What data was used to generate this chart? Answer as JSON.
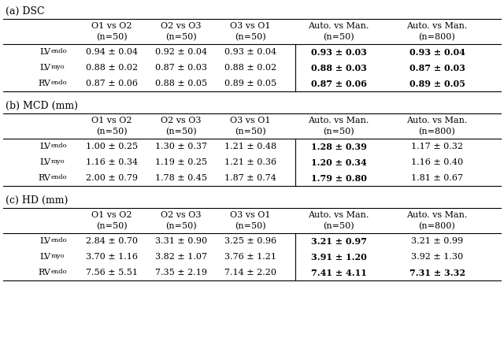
{
  "sections": [
    {
      "label": "(a) DSC",
      "header_row1": [
        "O1 vs O2",
        "O2 vs O3",
        "O3 vs O1",
        "Auto. vs Man.",
        "Auto. vs Man."
      ],
      "header_row2": [
        "(n=50)",
        "(n=50)",
        "(n=50)",
        "(n=50)",
        "(n=800)"
      ],
      "rows": [
        {
          "main": "LV",
          "sub": "endo",
          "cols": [
            {
              "text": "0.94 ± 0.04",
              "bold": false
            },
            {
              "text": "0.92 ± 0.04",
              "bold": false
            },
            {
              "text": "0.93 ± 0.04",
              "bold": false
            },
            {
              "text": "0.93 ± 0.03",
              "bold": true
            },
            {
              "text": "0.93 ± 0.04",
              "bold": true
            }
          ]
        },
        {
          "main": "LV",
          "sub": "myo",
          "cols": [
            {
              "text": "0.88 ± 0.02",
              "bold": false
            },
            {
              "text": "0.87 ± 0.03",
              "bold": false
            },
            {
              "text": "0.88 ± 0.02",
              "bold": false
            },
            {
              "text": "0.88 ± 0.03",
              "bold": true
            },
            {
              "text": "0.87 ± 0.03",
              "bold": true
            }
          ]
        },
        {
          "main": "RV",
          "sub": "endo",
          "cols": [
            {
              "text": "0.87 ± 0.06",
              "bold": false
            },
            {
              "text": "0.88 ± 0.05",
              "bold": false
            },
            {
              "text": "0.89 ± 0.05",
              "bold": false
            },
            {
              "text": "0.87 ± 0.06",
              "bold": true
            },
            {
              "text": "0.89 ± 0.05",
              "bold": true
            }
          ]
        }
      ]
    },
    {
      "label": "(b) MCD (mm)",
      "header_row1": [
        "O1 vs O2",
        "O2 vs O3",
        "O3 vs O1",
        "Auto. vs Man.",
        "Auto. vs Man."
      ],
      "header_row2": [
        "(n=50)",
        "(n=50)",
        "(n=50)",
        "(n=50)",
        "(n=800)"
      ],
      "rows": [
        {
          "main": "LV",
          "sub": "endo",
          "cols": [
            {
              "text": "1.00 ± 0.25",
              "bold": false
            },
            {
              "text": "1.30 ± 0.37",
              "bold": false
            },
            {
              "text": "1.21 ± 0.48",
              "bold": false
            },
            {
              "text": "1.28 ± 0.39",
              "bold": true
            },
            {
              "text": "1.17 ± 0.32",
              "bold": false
            }
          ]
        },
        {
          "main": "LV",
          "sub": "myo",
          "cols": [
            {
              "text": "1.16 ± 0.34",
              "bold": false
            },
            {
              "text": "1.19 ± 0.25",
              "bold": false
            },
            {
              "text": "1.21 ± 0.36",
              "bold": false
            },
            {
              "text": "1.20 ± 0.34",
              "bold": true
            },
            {
              "text": "1.16 ± 0.40",
              "bold": false
            }
          ]
        },
        {
          "main": "RV",
          "sub": "endo",
          "cols": [
            {
              "text": "2.00 ± 0.79",
              "bold": false
            },
            {
              "text": "1.78 ± 0.45",
              "bold": false
            },
            {
              "text": "1.87 ± 0.74",
              "bold": false
            },
            {
              "text": "1.79 ± 0.80",
              "bold": true
            },
            {
              "text": "1.81 ± 0.67",
              "bold": false
            }
          ]
        }
      ]
    },
    {
      "label": "(c) HD (mm)",
      "header_row1": [
        "O1 vs O2",
        "O2 vs O3",
        "O3 vs O1",
        "Auto. vs Man.",
        "Auto. vs Man."
      ],
      "header_row2": [
        "(n=50)",
        "(n=50)",
        "(n=50)",
        "(n=50)",
        "(n=800)"
      ],
      "rows": [
        {
          "main": "LV",
          "sub": "endo",
          "cols": [
            {
              "text": "2.84 ± 0.70",
              "bold": false
            },
            {
              "text": "3.31 ± 0.90",
              "bold": false
            },
            {
              "text": "3.25 ± 0.96",
              "bold": false
            },
            {
              "text": "3.21 ± 0.97",
              "bold": true
            },
            {
              "text": "3.21 ± 0.99",
              "bold": false
            }
          ]
        },
        {
          "main": "LV",
          "sub": "myo",
          "cols": [
            {
              "text": "3.70 ± 1.16",
              "bold": false
            },
            {
              "text": "3.82 ± 1.07",
              "bold": false
            },
            {
              "text": "3.76 ± 1.21",
              "bold": false
            },
            {
              "text": "3.91 ± 1.20",
              "bold": true
            },
            {
              "text": "3.92 ± 1.30",
              "bold": false
            }
          ]
        },
        {
          "main": "RV",
          "sub": "endo",
          "cols": [
            {
              "text": "7.56 ± 5.51",
              "bold": false
            },
            {
              "text": "7.35 ± 2.19",
              "bold": false
            },
            {
              "text": "7.14 ± 2.20",
              "bold": false
            },
            {
              "text": "7.41 ± 4.11",
              "bold": true
            },
            {
              "text": "7.31 ± 3.32",
              "bold": true
            }
          ]
        }
      ]
    }
  ],
  "bg_color": "#ffffff",
  "text_color": "#000000",
  "font_size": 8.0,
  "header_font_size": 8.0,
  "section_font_size": 9.0
}
